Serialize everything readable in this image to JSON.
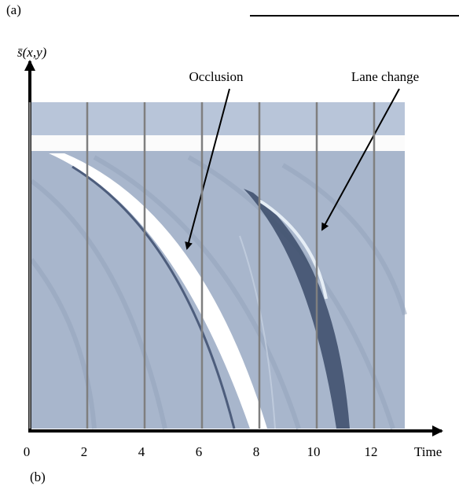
{
  "panels": [
    "(a)",
    "(b)"
  ],
  "chart_data": {
    "type": "image",
    "xlabel": "Time",
    "ylabel": "s̄(x,y)",
    "xlim": [
      0,
      14
    ],
    "xticks": [
      0,
      2,
      4,
      6,
      8,
      10,
      12
    ],
    "grid": true,
    "annotations": [
      "Occlusion",
      "Lane change"
    ]
  }
}
